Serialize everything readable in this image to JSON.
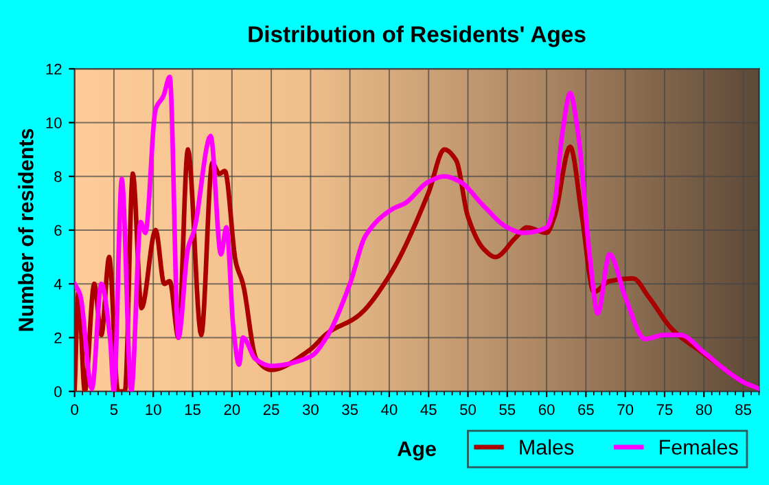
{
  "chart_data": {
    "type": "line",
    "title": "Distribution of Residents' Ages",
    "xlabel": "Age",
    "ylabel": "Number of residents",
    "xlim": [
      0,
      87
    ],
    "xticks": [
      0,
      5,
      10,
      15,
      20,
      25,
      30,
      35,
      40,
      45,
      50,
      55,
      60,
      65,
      70,
      75,
      80,
      85
    ],
    "ylim": [
      0,
      12
    ],
    "yticks": [
      0,
      2,
      4,
      6,
      8,
      10,
      12
    ],
    "grid": true,
    "legend": "bottom right",
    "marker": "none",
    "line_style": "solid",
    "series": [
      {
        "name": "Males",
        "color": "#aa0000",
        "x": [
          0,
          0.5,
          1.3,
          2.5,
          3.4,
          4.4,
          5.5,
          6.4,
          7.4,
          8.5,
          10.3,
          11.4,
          12.1,
          13.2,
          14.4,
          16.1,
          17.5,
          18.4,
          19.1,
          20.5,
          21.4,
          23.1,
          25,
          29.7,
          32.3,
          36,
          40,
          45,
          47,
          48.5,
          50,
          52,
          53.5,
          56,
          57.5,
          60,
          61,
          63,
          64.5,
          66,
          68,
          71,
          73,
          76,
          80,
          82.5,
          85,
          87
        ],
        "values": [
          0,
          3.7,
          0,
          4.0,
          2.1,
          5.0,
          0,
          0,
          8.1,
          3.1,
          6.0,
          4.0,
          4.1,
          2.0,
          9.0,
          2.1,
          8.5,
          8.1,
          8.2,
          4.8,
          4.0,
          1.2,
          0.8,
          1.5,
          2.2,
          2.8,
          4.3,
          7.4,
          9.0,
          8.6,
          6.5,
          5.3,
          5.0,
          5.7,
          6.1,
          5.9,
          6.5,
          9.1,
          6.5,
          3.7,
          4.1,
          4.2,
          3.5,
          2.3,
          1.4,
          0.85,
          0.35,
          0.1
        ]
      },
      {
        "name": "Females",
        "color": "#ff00ff",
        "x": [
          0,
          0.7,
          2.2,
          3.4,
          4.5,
          5.0,
          6.0,
          7.2,
          8.4,
          9.0,
          10.3,
          11.3,
          12.1,
          13.2,
          14.4,
          15.2,
          17.3,
          18.6,
          19.3,
          20.2,
          20.9,
          21.4,
          23,
          25,
          30,
          32,
          35,
          37,
          40.5,
          42,
          45,
          47,
          49,
          52,
          55,
          57,
          60,
          61,
          62,
          63,
          64,
          65.5,
          66.5,
          68,
          70,
          72.5,
          75,
          77,
          80,
          82.5,
          85,
          87
        ],
        "values": [
          4.0,
          3.6,
          0.1,
          4.0,
          2.0,
          0,
          7.9,
          0,
          6.3,
          5.9,
          10.5,
          11.0,
          11.7,
          2.0,
          5.3,
          6.0,
          9.5,
          5.1,
          6.1,
          2.3,
          1.0,
          2.0,
          1.2,
          0.95,
          1.3,
          2.0,
          4.0,
          5.8,
          6.8,
          7.0,
          7.8,
          8.0,
          7.8,
          6.9,
          6.1,
          5.9,
          6.1,
          7.0,
          9.6,
          11.1,
          9.6,
          5.0,
          2.9,
          5.1,
          3.5,
          1.95,
          2.1,
          2.1,
          1.45,
          0.85,
          0.35,
          0.1
        ]
      }
    ]
  }
}
